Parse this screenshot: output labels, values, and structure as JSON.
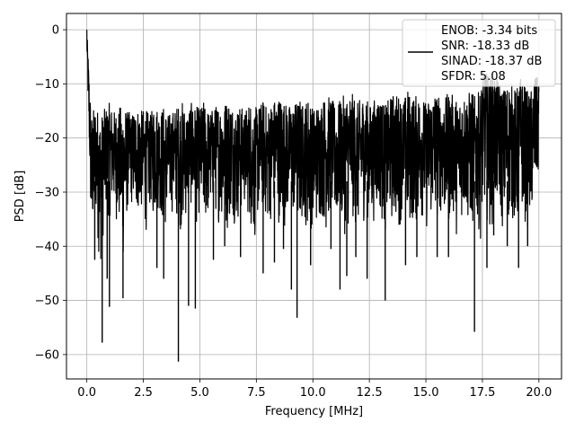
{
  "chart_data": {
    "type": "line",
    "title": "",
    "xlabel": "Frequency [MHz]",
    "ylabel": "PSD [dB]",
    "xlim": [
      -0.9,
      21.0
    ],
    "ylim": [
      -64.5,
      3.0
    ],
    "grid": true,
    "x_ticks": [
      0.0,
      2.5,
      5.0,
      7.5,
      10.0,
      12.5,
      15.0,
      17.5,
      20.0
    ],
    "x_tick_labels": [
      "0.0",
      "2.5",
      "5.0",
      "7.5",
      "10.0",
      "12.5",
      "15.0",
      "17.5",
      "20.0"
    ],
    "y_ticks": [
      0,
      -10,
      -20,
      -30,
      -40,
      -50,
      -60
    ],
    "y_tick_labels": [
      "0",
      "−10",
      "−20",
      "−30",
      "−40",
      "−50",
      "−60"
    ],
    "series": [
      {
        "color": "#000000",
        "x": [
          0.0,
          0.2,
          0.4,
          0.6,
          0.8,
          1.0,
          1.2,
          1.4,
          1.6,
          1.8,
          2.0,
          2.2,
          2.4,
          2.6,
          2.8,
          3.0,
          3.2,
          3.4,
          3.6,
          3.8,
          4.0,
          4.2,
          4.4,
          4.6,
          4.8,
          5.0,
          5.2,
          5.4,
          5.6,
          5.8,
          6.0,
          6.2,
          6.4,
          6.6,
          6.8,
          7.0,
          7.2,
          7.4,
          7.6,
          7.8,
          8.0,
          8.2,
          8.4,
          8.6,
          8.8,
          9.0,
          9.2,
          9.4,
          9.6,
          9.8,
          10.0,
          10.2,
          10.4,
          10.6,
          10.8,
          11.0,
          11.2,
          11.4,
          11.6,
          11.8,
          12.0,
          12.2,
          12.4,
          12.6,
          12.8,
          13.0,
          13.2,
          13.4,
          13.6,
          13.8,
          14.0,
          14.2,
          14.4,
          14.6,
          14.8,
          15.0,
          15.2,
          15.4,
          15.6,
          15.8,
          16.0,
          16.2,
          16.4,
          16.6,
          16.8,
          17.0,
          17.2,
          17.4,
          17.6,
          17.8,
          18.0,
          18.2,
          18.4,
          18.6,
          18.8,
          19.0,
          19.2,
          19.4,
          19.6,
          19.8,
          20.0
        ],
        "upper": [
          0.0,
          -15.5,
          -13.5,
          -16.0,
          -14.5,
          -13.5,
          -15.0,
          -14.5,
          -13.5,
          -15.0,
          -15.5,
          -14.0,
          -15.0,
          -14.5,
          -16.0,
          -13.0,
          -15.0,
          -14.0,
          -15.5,
          -15.0,
          -14.0,
          -13.0,
          -15.0,
          -13.5,
          -14.0,
          -14.5,
          -13.0,
          -15.0,
          -14.5,
          -13.5,
          -14.0,
          -12.5,
          -13.5,
          -14.5,
          -14.0,
          -15.0,
          -13.0,
          -14.5,
          -14.0,
          -13.0,
          -14.5,
          -13.0,
          -12.5,
          -12.0,
          -13.5,
          -14.0,
          -13.5,
          -12.5,
          -14.0,
          -12.0,
          -14.5,
          -13.5,
          -13.0,
          -12.0,
          -12.5,
          -14.0,
          -13.0,
          -12.0,
          -11.5,
          -12.0,
          -13.5,
          -12.0,
          -13.0,
          -14.0,
          -12.0,
          -12.5,
          -14.0,
          -12.5,
          -11.5,
          -12.0,
          -13.0,
          -11.0,
          -12.5,
          -12.0,
          -11.5,
          -13.5,
          -12.0,
          -11.0,
          -12.5,
          -13.0,
          -11.5,
          -12.0,
          -13.0,
          -11.5,
          -12.0,
          -11.0,
          -12.5,
          -11.0,
          -7.5,
          -8.5,
          -7.5,
          -9.0,
          -11.0,
          -9.5,
          -10.0,
          -11.0,
          -8.5,
          -10.5,
          -12.0,
          -8.5,
          -9.0
        ],
        "lower": [
          -5.0,
          -42.0,
          -36.0,
          -45.0,
          -35.0,
          -35.0,
          -34.0,
          -37.0,
          -44.0,
          -34.0,
          -33.0,
          -35.0,
          -34.0,
          -38.0,
          -33.0,
          -36.0,
          -33.0,
          -39.0,
          -35.0,
          -34.0,
          -36.0,
          -38.0,
          -35.0,
          -33.0,
          -37.0,
          -34.0,
          -38.0,
          -35.0,
          -33.0,
          -36.0,
          -35.0,
          -38.0,
          -34.0,
          -37.0,
          -35.0,
          -33.0,
          -36.0,
          -40.0,
          -35.0,
          -34.0,
          -37.0,
          -35.0,
          -34.0,
          -38.0,
          -36.0,
          -34.0,
          -36.0,
          -38.0,
          -35.0,
          -39.0,
          -36.0,
          -37.0,
          -35.0,
          -38.0,
          -34.0,
          -37.0,
          -36.0,
          -38.0,
          -37.0,
          -36.0,
          -38.0,
          -36.0,
          -35.0,
          -37.0,
          -34.0,
          -35.0,
          -38.0,
          -36.0,
          -36.0,
          -37.0,
          -34.0,
          -38.0,
          -36.0,
          -37.0,
          -35.0,
          -38.0,
          -36.0,
          -37.0,
          -34.0,
          -36.0,
          -37.0,
          -35.0,
          -39.0,
          -35.0,
          -36.0,
          -38.0,
          -36.0,
          -39.0,
          -34.0,
          -37.0,
          -36.0,
          -33.0,
          -38.0,
          -37.0,
          -35.0,
          -39.0,
          -34.0,
          -36.0,
          -38.0,
          -33.0,
          -28.0
        ]
      }
    ],
    "dips": [
      {
        "x": 0.35,
        "y": -42.5
      },
      {
        "x": 0.5,
        "y": -38.5
      },
      {
        "x": 0.68,
        "y": -57.8
      },
      {
        "x": 0.9,
        "y": -46.0
      },
      {
        "x": 1.0,
        "y": -51.2
      },
      {
        "x": 1.6,
        "y": -49.6
      },
      {
        "x": 3.1,
        "y": -44.0
      },
      {
        "x": 3.4,
        "y": -46.0
      },
      {
        "x": 4.05,
        "y": -61.3
      },
      {
        "x": 4.5,
        "y": -51.0
      },
      {
        "x": 4.8,
        "y": -51.5
      },
      {
        "x": 5.6,
        "y": -42.5
      },
      {
        "x": 6.1,
        "y": -40.0
      },
      {
        "x": 6.8,
        "y": -42.0
      },
      {
        "x": 7.8,
        "y": -45.0
      },
      {
        "x": 8.3,
        "y": -43.0
      },
      {
        "x": 8.7,
        "y": -40.5
      },
      {
        "x": 9.05,
        "y": -48.0
      },
      {
        "x": 9.3,
        "y": -53.2
      },
      {
        "x": 9.9,
        "y": -43.5
      },
      {
        "x": 10.8,
        "y": -40.5
      },
      {
        "x": 11.2,
        "y": -48.0
      },
      {
        "x": 11.5,
        "y": -45.5
      },
      {
        "x": 11.9,
        "y": -42.0
      },
      {
        "x": 12.4,
        "y": -46.0
      },
      {
        "x": 13.2,
        "y": -50.0
      },
      {
        "x": 14.1,
        "y": -43.5
      },
      {
        "x": 14.6,
        "y": -42.0
      },
      {
        "x": 15.5,
        "y": -42.0
      },
      {
        "x": 16.0,
        "y": -42.0
      },
      {
        "x": 17.15,
        "y": -55.8
      },
      {
        "x": 17.7,
        "y": -44.0
      },
      {
        "x": 18.0,
        "y": -38.0
      },
      {
        "x": 18.6,
        "y": -40.0
      },
      {
        "x": 19.1,
        "y": -44.0
      },
      {
        "x": 19.5,
        "y": -40.0
      }
    ],
    "legend": {
      "placement": "upper-right",
      "entries": [
        "ENOB: -3.34 bits",
        "SNR: -18.33 dB",
        "SINAD: -18.37 dB",
        "SFDR: 5.08"
      ]
    }
  }
}
